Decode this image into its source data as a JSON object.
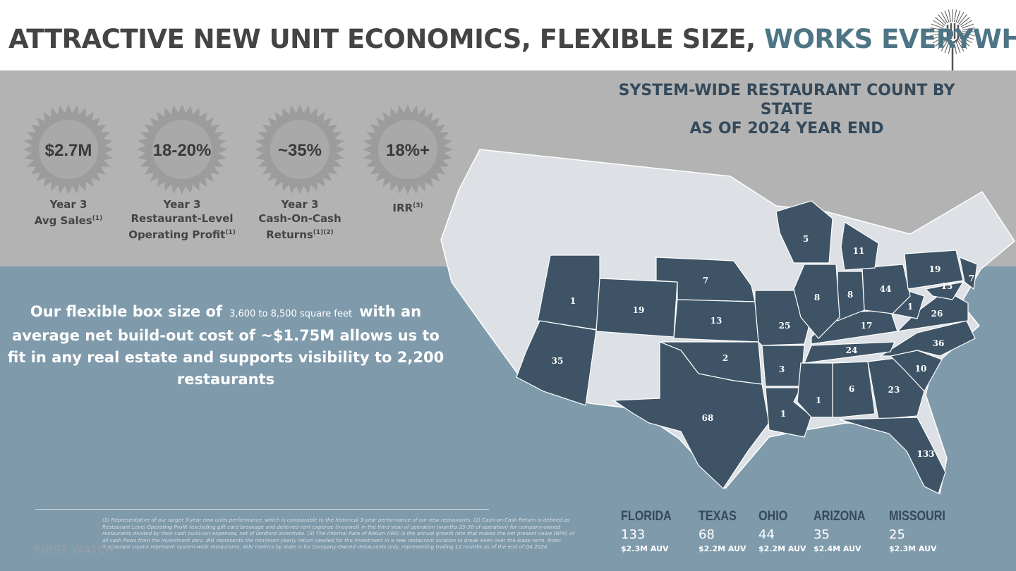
{
  "header": {
    "title_main": "ATTRACTIVE NEW UNIT ECONOMICS, FLEXIBLE SIZE,",
    "title_accent": "WORKS EVERYWHERE"
  },
  "metrics": [
    {
      "value": "$2.7M",
      "lines": [
        "Year 3",
        "Avg Sales"
      ],
      "note": "(1)"
    },
    {
      "value": "18-20%",
      "lines": [
        "Year 3",
        "Restaurant-Level",
        "Operating Profit"
      ],
      "note": "(1)"
    },
    {
      "value": "~35%",
      "lines": [
        "Year 3",
        "Cash-On-Cash",
        "Returns"
      ],
      "note": "(1)(2)"
    },
    {
      "value": "18%+",
      "lines": [
        "IRR"
      ],
      "note": "(3)"
    }
  ],
  "body": {
    "before": "Our flexible box size of",
    "highlight": "3,600 to 8,500 square feet",
    "after": "with an average net build-out cost of ~$1.75M allows us to fit in any real estate and supports visibility to 2,200 restaurants"
  },
  "map": {
    "title_lines": [
      "SYSTEM-WIDE RESTAURANT COUNT BY",
      "STATE",
      "AS OF 2024 YEAR END"
    ],
    "counts": [
      1,
      19,
      35,
      7,
      13,
      2,
      68,
      25,
      3,
      1,
      1,
      6,
      23,
      133,
      10,
      36,
      24,
      17,
      26,
      1,
      44,
      8,
      8,
      5,
      11,
      19,
      7,
      15
    ]
  },
  "top_states": [
    {
      "name": "FLORIDA",
      "count": 133,
      "auv": "$2.3M AUV"
    },
    {
      "name": "TEXAS",
      "count": 68,
      "auv": "$2.2M AUV"
    },
    {
      "name": "OHIO",
      "count": 44,
      "auv": "$2.2M AUV"
    },
    {
      "name": "ARIZONA",
      "count": 35,
      "auv": "$2.4M AUV"
    },
    {
      "name": "MISSOURI",
      "count": 25,
      "auv": "$2.3M AUV"
    }
  ],
  "footnote": "(1) Representative of our target 3-year new units performance, which is comparable to the historical 3-year performance of our new restaurants. (2) Cash-on-Cash Return is defined as Restaurant Level Operating Profit (excluding gift card breakage and deferred rent expense (income)) in the third year of operation (months 25-36 of operation) for company-owned restaurants divided by their cash build-out expenses, net of landlord incentives. (3) The Internal Rate of Return (IRR) is the annual growth rate that makes the net present value (NPV) of all cash flows from the investment zero. IRR represents the minimum yearly return needed for the investment in a new restaurant location to break even over the lease term. Note: Restaurant counts represent system-wide restaurants. AUV metrics by state is for Company-Owned restaurants only, representing trailing 12 months as of the end of Q4 2024.",
  "logo": "FIRST WATCH"
}
